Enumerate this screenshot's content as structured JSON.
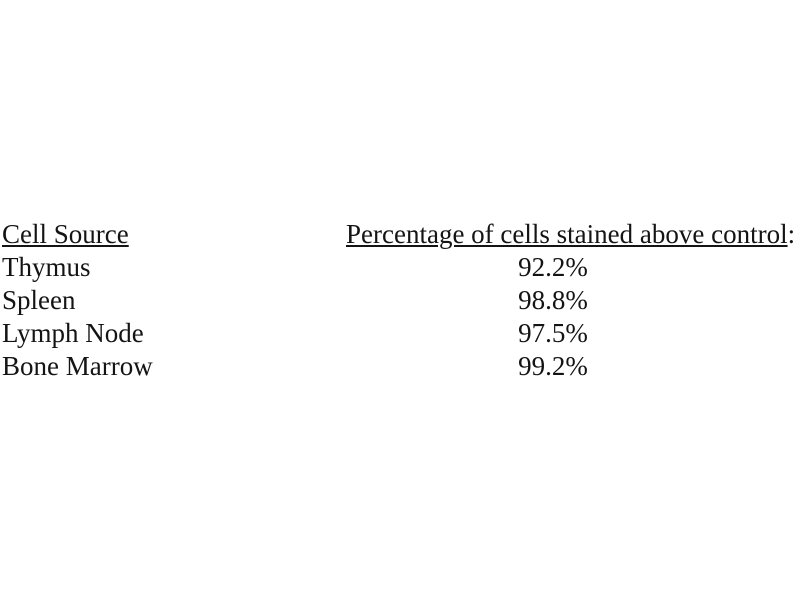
{
  "colors": {
    "background": "#ffffff",
    "text": "#141414"
  },
  "table": {
    "columns": [
      {
        "label": "Cell Source",
        "suffix": ""
      },
      {
        "label": "Percentage of cells stained above control",
        "suffix": ":"
      }
    ],
    "rows": [
      {
        "cell_source": "Thymus",
        "percentage": "92.2%"
      },
      {
        "cell_source": "Spleen",
        "percentage": "98.8%"
      },
      {
        "cell_source": "Lymph Node",
        "percentage": "97.5%"
      },
      {
        "cell_source": "Bone Marrow",
        "percentage": "99.2%"
      }
    ]
  }
}
